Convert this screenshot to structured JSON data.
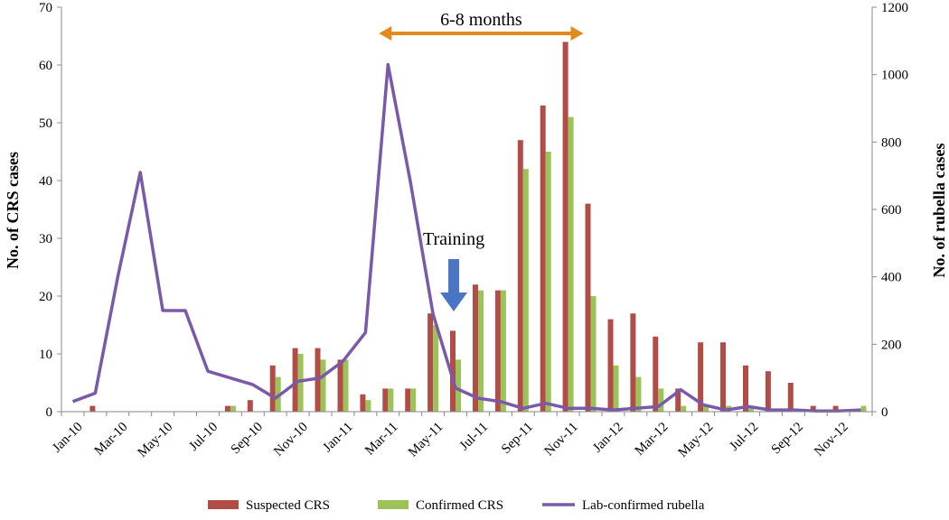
{
  "chart_data": {
    "type": "bar",
    "categories": [
      "Jan-10",
      "Feb-10",
      "Mar-10",
      "Apr-10",
      "May-10",
      "Jun-10",
      "Jul-10",
      "Aug-10",
      "Sep-10",
      "Oct-10",
      "Nov-10",
      "Dec-10",
      "Jan-11",
      "Feb-11",
      "Mar-11",
      "Apr-11",
      "May-11",
      "Jun-11",
      "Jul-11",
      "Aug-11",
      "Sep-11",
      "Oct-11",
      "Nov-11",
      "Dec-11",
      "Jan-12",
      "Feb-12",
      "Mar-12",
      "Apr-12",
      "May-12",
      "Jun-12",
      "Jul-12",
      "Aug-12",
      "Sep-12",
      "Oct-12",
      "Nov-12",
      "Dec-12"
    ],
    "xtick_labels": [
      "Jan-10",
      "Mar-10",
      "May-10",
      "Jul-10",
      "Sep-10",
      "Nov-10",
      "Jan-11",
      "Mar-11",
      "May-11",
      "Jul-11",
      "Sep-11",
      "Nov-11",
      "Jan-12",
      "Mar-12",
      "May-12",
      "Jul-12",
      "Sep-12",
      "Nov-12"
    ],
    "series": [
      {
        "name": "Suspected CRS",
        "type": "bar",
        "axis": "left",
        "color": "#b24c47",
        "values": [
          0,
          1,
          0,
          0,
          0,
          0,
          0,
          1,
          2,
          8,
          11,
          11,
          9,
          3,
          4,
          4,
          17,
          14,
          22,
          21,
          47,
          53,
          64,
          36,
          16,
          17,
          13,
          4,
          12,
          12,
          8,
          7,
          5,
          1,
          1,
          0
        ]
      },
      {
        "name": "Confirmed CRS",
        "type": "bar",
        "axis": "left",
        "color": "#9bc35a",
        "values": [
          0,
          0,
          0,
          0,
          0,
          0,
          0,
          1,
          0,
          6,
          10,
          9,
          9,
          2,
          4,
          4,
          15,
          9,
          21,
          21,
          42,
          45,
          51,
          20,
          8,
          6,
          4,
          1,
          1,
          1,
          1,
          0,
          0,
          0,
          0,
          1
        ]
      },
      {
        "name": "Lab-confirmed rubella",
        "type": "line",
        "axis": "right",
        "color": "#7a5aa8",
        "values": [
          30,
          55,
          400,
          710,
          300,
          300,
          120,
          100,
          80,
          40,
          90,
          100,
          150,
          235,
          1030,
          680,
          290,
          70,
          40,
          30,
          10,
          25,
          10,
          10,
          5,
          10,
          15,
          65,
          20,
          5,
          15,
          5,
          5,
          2,
          2,
          5
        ]
      }
    ],
    "ylabel": "No. of CRS cases",
    "y2label": "No. of rubella cases",
    "ylim": [
      0,
      70
    ],
    "y2lim": [
      0,
      1200
    ],
    "yticks": [
      0,
      10,
      20,
      30,
      40,
      50,
      60,
      70
    ],
    "y2ticks": [
      0,
      200,
      400,
      600,
      800,
      1000,
      1200
    ],
    "annotations": {
      "range_label": "6-8 months",
      "range_from": "Mar-11",
      "range_to": "Dec-11",
      "arrow_label": "Training",
      "arrow_at": "Jun-11"
    },
    "legend_position": "bottom",
    "grid": false,
    "colors": {
      "range_arrow": "#e28a1e",
      "down_arrow": "#4a74c4"
    }
  }
}
